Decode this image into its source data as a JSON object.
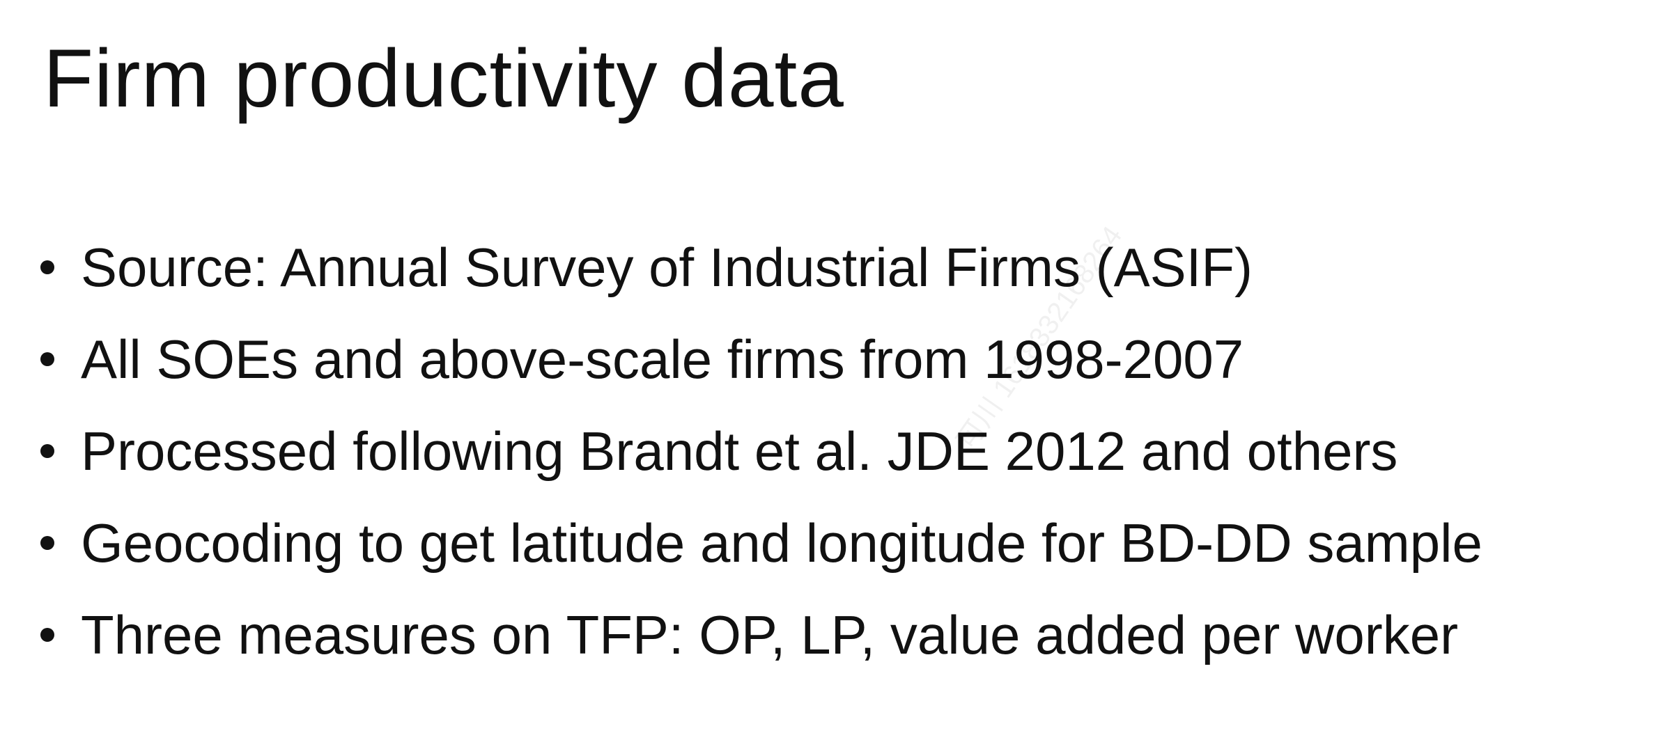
{
  "slide": {
    "title": "Firm productivity data",
    "bullets": [
      "Source: Annual Survey of Industrial Firms (ASIF)",
      "All SOEs and above-scale firms from 1998-2007",
      "Processed following Brandt et al. JDE 2012 and others",
      "Geocoding to get latitude and longitude for BD-DD sample",
      "Three measures on TFP: OP, LP, value added per worker"
    ],
    "watermark": "可川 1618332168264"
  },
  "colors": {
    "text": "#111111",
    "background": "#ffffff"
  }
}
